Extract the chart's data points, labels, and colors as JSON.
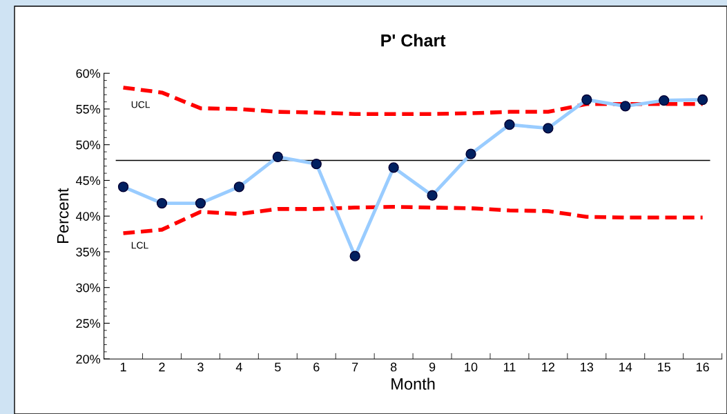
{
  "chart_data": {
    "type": "line",
    "title": "P' Chart",
    "xlabel": "Month",
    "ylabel": "Percent",
    "categories": [
      "1",
      "2",
      "3",
      "4",
      "5",
      "6",
      "7",
      "8",
      "9",
      "10",
      "11",
      "12",
      "13",
      "14",
      "15",
      "16"
    ],
    "ylim": [
      20,
      60
    ],
    "yticks": [
      {
        "value": 20,
        "label": "20%"
      },
      {
        "value": 25,
        "label": "25%"
      },
      {
        "value": 30,
        "label": "30%"
      },
      {
        "value": 35,
        "label": "35%"
      },
      {
        "value": 40,
        "label": "40%"
      },
      {
        "value": 45,
        "label": "45%"
      },
      {
        "value": 50,
        "label": "50%"
      },
      {
        "value": 55,
        "label": "55%"
      },
      {
        "value": 60,
        "label": "60%"
      }
    ],
    "grid": false,
    "legend": false,
    "series": [
      {
        "color": "#99ccff",
        "marker": "circle",
        "line_style": "solid",
        "values": [
          44.1,
          41.8,
          41.8,
          44.1,
          48.3,
          47.3,
          34.4,
          46.8,
          42.9,
          48.7,
          52.8,
          52.3,
          56.3,
          55.4,
          56.2,
          56.3
        ]
      },
      {
        "name": "UCL",
        "color": "#ff0000",
        "marker": "none",
        "line_style": "dashed",
        "values": [
          58.0,
          57.3,
          55.1,
          55.0,
          54.6,
          54.5,
          54.3,
          54.3,
          54.3,
          54.4,
          54.6,
          54.6,
          55.7,
          55.7,
          55.7,
          55.7
        ]
      },
      {
        "name": "LCL",
        "color": "#ff0000",
        "marker": "none",
        "line_style": "dashed",
        "values": [
          37.6,
          38.1,
          40.6,
          40.3,
          41.0,
          41.0,
          41.2,
          41.3,
          41.2,
          41.1,
          40.8,
          40.7,
          39.9,
          39.8,
          39.8,
          39.8
        ]
      }
    ],
    "ref_lines": [
      {
        "axis": "y",
        "value": 47.8,
        "color": "#000000",
        "line_style": "solid"
      }
    ]
  }
}
